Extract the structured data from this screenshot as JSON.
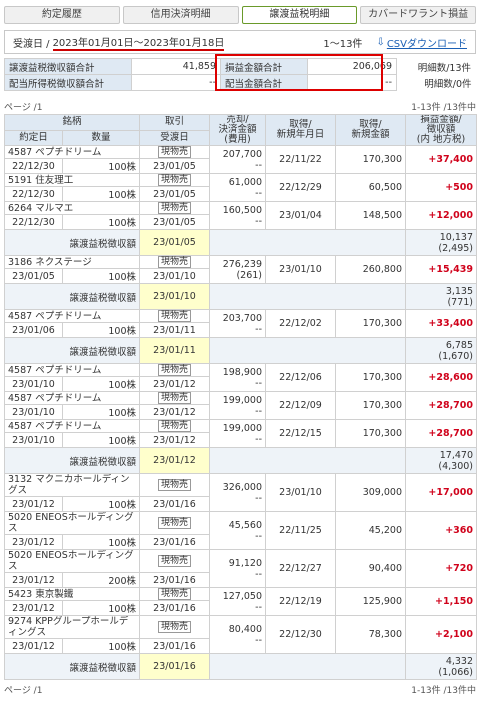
{
  "tabs": [
    "約定履歴",
    "信用決済明細",
    "譲渡益税明細",
    "カバードワラント損益"
  ],
  "period": {
    "label": "受渡日 /",
    "dates": "2023年01月01日～2023年01月18日",
    "count": "1～13件",
    "csv": "CSVダウンロード",
    "csv_icon": "download-icon"
  },
  "summary": {
    "tax_label": "譲渡益税徴収額合計",
    "tax_value": "41,859",
    "pl_label": "損益金額合計",
    "pl_value": "206,069",
    "detail_label": "明細数/13件",
    "div_tax_label": "配当所得税徴収額合計",
    "div_tax_value": "--",
    "div_label": "配当金額合計",
    "div_value": "--",
    "div_detail_label": "明細数/0件",
    "highlight_color": "#dd0000"
  },
  "pager": {
    "page": "ページ /1",
    "range": "1-13件 /13件中"
  },
  "headers": {
    "meigara": "銘柄",
    "torihiki": "取引",
    "urikessai": "売却/",
    "kessai": "決済金額",
    "hiyou": "(費用)",
    "shutoku": "取得/",
    "shinki_date": "新規年月日",
    "shutoku2": "取得/",
    "shinki_amt": "新規金額",
    "pl": "損益金額/",
    "tax": "徴収額",
    "local": "(内 地方税)",
    "yakujo": "約定日",
    "suryo": "数量",
    "ukewatashi": "受渡日"
  },
  "trade_type": "現物売",
  "rows": [
    {
      "name": "4587 ペプチドリーム",
      "date": "22/12/30",
      "qty": "100株",
      "deliv": "23/01/05",
      "amount": "207,700",
      "fee": "--",
      "acq": "22/11/22",
      "cost": "170,300",
      "pl": "+37,400"
    },
    {
      "name": "5191 住友理工",
      "date": "22/12/30",
      "qty": "100株",
      "deliv": "23/01/05",
      "amount": "61,000",
      "fee": "--",
      "acq": "22/12/29",
      "cost": "60,500",
      "pl": "+500"
    },
    {
      "name": "6264 マルマエ",
      "date": "22/12/30",
      "qty": "100株",
      "deliv": "23/01/05",
      "amount": "160,500",
      "fee": "--",
      "acq": "23/01/04",
      "cost": "148,500",
      "pl": "+12,000"
    },
    {
      "subtotal": true,
      "label": "譲渡益税徴収額",
      "deliv": "23/01/05",
      "tax": "10,137",
      "local": "(2,495)"
    },
    {
      "name": "3186 ネクステージ",
      "date": "23/01/05",
      "qty": "100株",
      "deliv": "23/01/10",
      "amount": "276,239",
      "fee": "(261)",
      "acq": "23/01/10",
      "cost": "260,800",
      "pl": "+15,439"
    },
    {
      "subtotal": true,
      "label": "譲渡益税徴収額",
      "deliv": "23/01/10",
      "tax": "3,135",
      "local": "(771)"
    },
    {
      "name": "4587 ペプチドリーム",
      "date": "23/01/06",
      "qty": "100株",
      "deliv": "23/01/11",
      "amount": "203,700",
      "fee": "--",
      "acq": "22/12/02",
      "cost": "170,300",
      "pl": "+33,400"
    },
    {
      "subtotal": true,
      "label": "譲渡益税徴収額",
      "deliv": "23/01/11",
      "tax": "6,785",
      "local": "(1,670)"
    },
    {
      "name": "4587 ペプチドリーム",
      "date": "23/01/10",
      "qty": "100株",
      "deliv": "23/01/12",
      "amount": "198,900",
      "fee": "--",
      "acq": "22/12/06",
      "cost": "170,300",
      "pl": "+28,600"
    },
    {
      "name": "4587 ペプチドリーム",
      "date": "23/01/10",
      "qty": "100株",
      "deliv": "23/01/12",
      "amount": "199,000",
      "fee": "--",
      "acq": "22/12/09",
      "cost": "170,300",
      "pl": "+28,700"
    },
    {
      "name": "4587 ペプチドリーム",
      "date": "23/01/10",
      "qty": "100株",
      "deliv": "23/01/12",
      "amount": "199,000",
      "fee": "--",
      "acq": "22/12/15",
      "cost": "170,300",
      "pl": "+28,700"
    },
    {
      "subtotal": true,
      "label": "譲渡益税徴収額",
      "deliv": "23/01/12",
      "tax": "17,470",
      "local": "(4,300)"
    },
    {
      "name": "3132 マクニカホールディングス",
      "date": "23/01/12",
      "qty": "100株",
      "deliv": "23/01/16",
      "amount": "326,000",
      "fee": "--",
      "acq": "23/01/10",
      "cost": "309,000",
      "pl": "+17,000"
    },
    {
      "name": "5020 ENEOSホールディングス",
      "date": "23/01/12",
      "qty": "100株",
      "deliv": "23/01/16",
      "amount": "45,560",
      "fee": "--",
      "acq": "22/11/25",
      "cost": "45,200",
      "pl": "+360"
    },
    {
      "name": "5020 ENEOSホールディングス",
      "date": "23/01/12",
      "qty": "200株",
      "deliv": "23/01/16",
      "amount": "91,120",
      "fee": "--",
      "acq": "22/12/27",
      "cost": "90,400",
      "pl": "+720"
    },
    {
      "name": "5423 東京製鐵",
      "date": "23/01/12",
      "qty": "100株",
      "deliv": "23/01/16",
      "amount": "127,050",
      "fee": "--",
      "acq": "22/12/19",
      "cost": "125,900",
      "pl": "+1,150"
    },
    {
      "name": "9274 KPPグループホールディングス",
      "date": "23/01/12",
      "qty": "100株",
      "deliv": "23/01/16",
      "amount": "80,400",
      "fee": "--",
      "acq": "22/12/30",
      "cost": "78,300",
      "pl": "+2,100"
    },
    {
      "subtotal": true,
      "label": "譲渡益税徴収額",
      "deliv": "23/01/16",
      "tax": "4,332",
      "local": "(1,066)"
    }
  ]
}
